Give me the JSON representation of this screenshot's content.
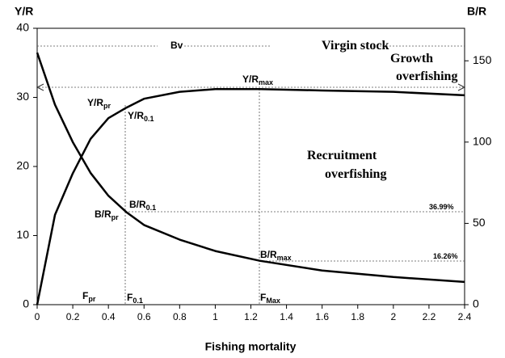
{
  "chart_data": {
    "type": "line",
    "y_label": "Y/R",
    "y2_label": "B/R",
    "x_label": "Fishing mortality",
    "x": [
      0,
      0.1,
      0.2,
      0.3,
      0.4,
      0.5,
      0.6,
      0.8,
      1.0,
      1.25,
      1.6,
      2.0,
      2.4
    ],
    "series": [
      {
        "name": "Y/R",
        "color": "#000000",
        "values": [
          0,
          13,
          19,
          24,
          27,
          28.5,
          29.8,
          30.8,
          31.2,
          31.2,
          31.0,
          30.8,
          30.3
        ]
      },
      {
        "name": "B/R",
        "color": "#000000",
        "axis": "y2",
        "values": [
          155,
          123,
          100,
          81,
          67,
          57,
          49,
          40,
          33,
          27,
          21,
          17,
          14
        ]
      }
    ],
    "xlim": [
      0,
      2.4
    ],
    "xticks": [
      0,
      0.2,
      0.4,
      0.6,
      0.8,
      1,
      1.2,
      1.4,
      1.6,
      1.8,
      2,
      2.2,
      2.4
    ],
    "ylim": [
      0,
      40
    ],
    "yticks": [
      0,
      10,
      20,
      30,
      40
    ],
    "y2lim": [
      0,
      170
    ],
    "y2ticks": [
      0,
      50,
      100,
      150
    ],
    "annotations": [
      {
        "text": "Bv"
      },
      {
        "text": "Virgin stock"
      },
      {
        "text": "Growth"
      },
      {
        "text": "overfishing"
      },
      {
        "text": "Y/R",
        "sub": "max"
      },
      {
        "text": "Y/R",
        "sub": "pr"
      },
      {
        "text": "Y/R",
        "sub": "0.1"
      },
      {
        "text": "Recruitment"
      },
      {
        "text": "overfishing"
      },
      {
        "text": "B/R",
        "sub": "0.1"
      },
      {
        "text": "B/R",
        "sub": "pr"
      },
      {
        "text": "36.99%"
      },
      {
        "text": "B/R",
        "sub": "max"
      },
      {
        "text": "16.26%"
      },
      {
        "text": "F",
        "sub": "pr"
      },
      {
        "text": "F",
        "sub": "0.1"
      },
      {
        "text": "F",
        "sub": "Max"
      }
    ]
  }
}
